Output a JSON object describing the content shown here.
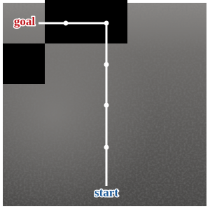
{
  "labels": {
    "goal": "goal",
    "start": "start"
  }
}
